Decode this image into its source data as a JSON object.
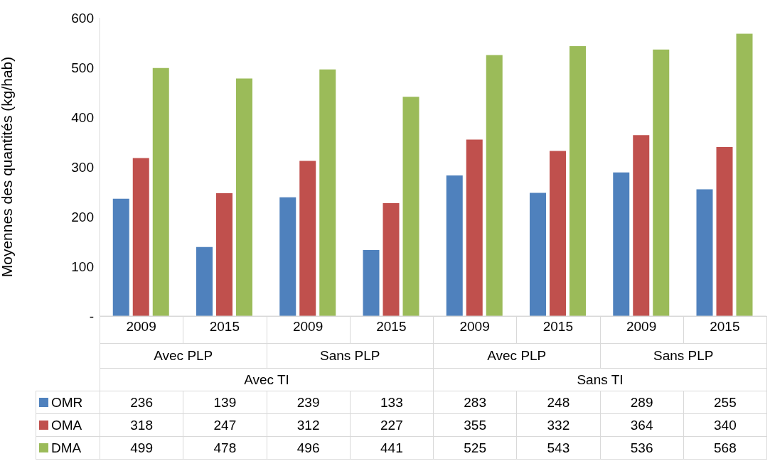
{
  "chart_data": {
    "type": "bar",
    "ylabel": "Moyennes des quantités (kg/hab)",
    "categories": [
      "2009",
      "2015",
      "2009",
      "2015",
      "2009",
      "2015",
      "2009",
      "2015"
    ],
    "annotations": [
      "Avec PLP",
      "Sans PLP",
      "Avec PLP",
      "Sans PLP",
      "Avec TI",
      "Sans TI"
    ],
    "series": [
      {
        "name": "OMR",
        "color": "#4f81bd",
        "values": [
          236,
          139,
          239,
          133,
          283,
          248,
          289,
          255
        ]
      },
      {
        "name": "OMA",
        "color": "#c0504d",
        "values": [
          318,
          247,
          312,
          227,
          355,
          332,
          364,
          340
        ]
      },
      {
        "name": "DMA",
        "color": "#9bbb59",
        "values": [
          499,
          478,
          496,
          441,
          525,
          543,
          536,
          568
        ]
      }
    ],
    "ylim": [
      0,
      600
    ],
    "yticks": [
      {
        "value": 0,
        "label": "-"
      },
      100,
      200,
      300,
      400,
      500,
      600
    ],
    "legend": "bottom",
    "data_labels": true
  }
}
